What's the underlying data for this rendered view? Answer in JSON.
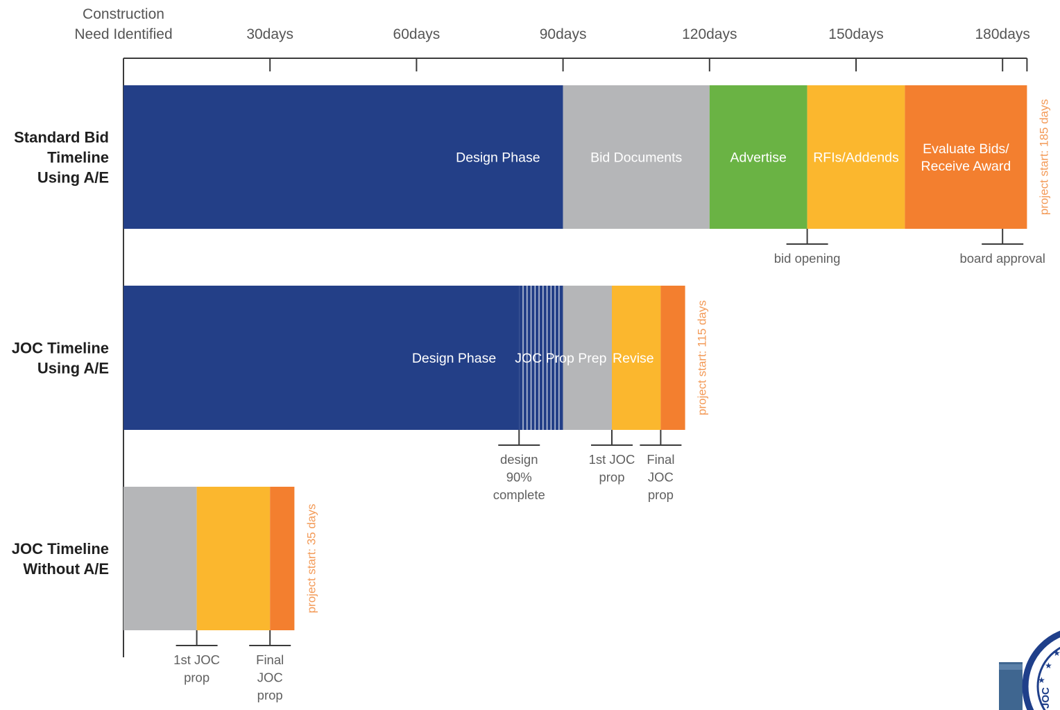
{
  "chart_data": {
    "type": "bar",
    "orientation": "horizontal-stacked",
    "x_unit": "days",
    "x_range": [
      0,
      185
    ],
    "ticks": [
      {
        "day": 0,
        "label": "Construction\nNeed Identified"
      },
      {
        "day": 30,
        "label": "30days"
      },
      {
        "day": 60,
        "label": "60days"
      },
      {
        "day": 90,
        "label": "90days"
      },
      {
        "day": 120,
        "label": "120days"
      },
      {
        "day": 150,
        "label": "150days"
      },
      {
        "day": 180,
        "label": "180days"
      }
    ],
    "rows": [
      {
        "label": "Standard Bid\nTimeline\nUsing A/E",
        "project_start_label": "project start: 185 days",
        "segments": [
          {
            "label": "Design Phase",
            "start": 0,
            "end": 90,
            "color": "#233f87",
            "text_color": "#ffffff"
          },
          {
            "label": "Bid Documents",
            "start": 90,
            "end": 120,
            "color": "#b5b6b8",
            "text_color": "#ffffff"
          },
          {
            "label": "Advertise",
            "start": 120,
            "end": 140,
            "color": "#6ab344",
            "text_color": "#ffffff"
          },
          {
            "label": "RFIs/Addends",
            "start": 140,
            "end": 160,
            "color": "#fbb72e",
            "text_color": "#ffffff"
          },
          {
            "label": "Evaluate Bids/\nReceive Award",
            "start": 160,
            "end": 185,
            "color": "#f37f2f",
            "text_color": "#ffffff"
          }
        ],
        "milestones": [
          {
            "label": "bid opening",
            "day": 140
          },
          {
            "label": "board approval",
            "day": 180
          }
        ]
      },
      {
        "label": "JOC Timeline\nUsing A/E",
        "project_start_label": "project start: 115 days",
        "segments": [
          {
            "label": "Design Phase",
            "start": 0,
            "end": 81,
            "color": "#233f87",
            "text_color": "#ffffff"
          },
          {
            "label": "",
            "start": 81,
            "end": 90,
            "color": "#233f87",
            "striped": true
          },
          {
            "label": "",
            "start": 90,
            "end": 100,
            "color": "#b5b6b8"
          },
          {
            "label": "",
            "start": 100,
            "end": 110,
            "color": "#fbb72e"
          },
          {
            "label": "",
            "start": 110,
            "end": 115,
            "color": "#f37f2f"
          }
        ],
        "overlay_labels": [
          {
            "text": "JOC Prop Prep",
            "day": 81
          },
          {
            "text": "Revise",
            "day": 101
          }
        ],
        "milestones": [
          {
            "label": "design\n90%\ncomplete",
            "day": 81
          },
          {
            "label": "1st JOC\nprop",
            "day": 100
          },
          {
            "label": "Final\nJOC\nprop",
            "day": 110
          }
        ]
      },
      {
        "label": "JOC Timeline\nWithout A/E",
        "project_start_label": "project start: 35 days",
        "segments": [
          {
            "label": "",
            "start": 0,
            "end": 15,
            "color": "#b5b6b8"
          },
          {
            "label": "",
            "start": 15,
            "end": 30,
            "color": "#fbb72e"
          },
          {
            "label": "",
            "start": 30,
            "end": 35,
            "color": "#f37f2f"
          }
        ],
        "milestones": [
          {
            "label": "1st JOC\nprop",
            "day": 15
          },
          {
            "label": "Final\nJOC\nprop",
            "day": 30
          }
        ]
      }
    ],
    "colors": {
      "axis": "#3a3a3a",
      "tick_text": "#555555",
      "row_label": "#1f1f1f",
      "milestone_text": "#5f5f5f",
      "project_start": "#f39a57"
    }
  },
  "logo": {
    "text": "JOC"
  }
}
